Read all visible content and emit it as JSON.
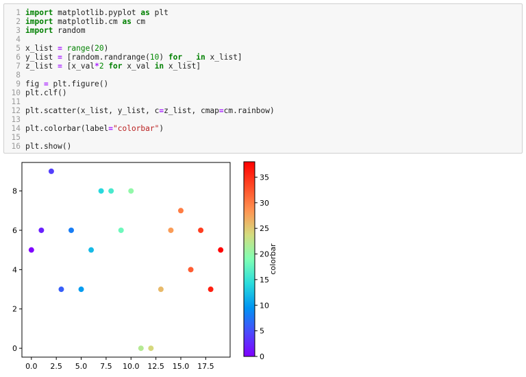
{
  "code_cell": {
    "lines": [
      {
        "num": "1",
        "tokens": [
          {
            "t": "kw",
            "v": "import"
          },
          {
            "t": "",
            "v": " matplotlib.pyplot "
          },
          {
            "t": "kw",
            "v": "as"
          },
          {
            "t": "",
            "v": " plt"
          }
        ]
      },
      {
        "num": "2",
        "tokens": [
          {
            "t": "kw",
            "v": "import"
          },
          {
            "t": "",
            "v": " matplotlib.cm "
          },
          {
            "t": "kw",
            "v": "as"
          },
          {
            "t": "",
            "v": " cm"
          }
        ]
      },
      {
        "num": "3",
        "tokens": [
          {
            "t": "kw",
            "v": "import"
          },
          {
            "t": "",
            "v": " random"
          }
        ]
      },
      {
        "num": "4",
        "tokens": []
      },
      {
        "num": "5",
        "tokens": [
          {
            "t": "",
            "v": "x_list "
          },
          {
            "t": "op",
            "v": "="
          },
          {
            "t": "",
            "v": " "
          },
          {
            "t": "bi",
            "v": "range"
          },
          {
            "t": "",
            "v": "("
          },
          {
            "t": "nm",
            "v": "20"
          },
          {
            "t": "",
            "v": ")"
          }
        ]
      },
      {
        "num": "6",
        "tokens": [
          {
            "t": "",
            "v": "y_list "
          },
          {
            "t": "op",
            "v": "="
          },
          {
            "t": "",
            "v": " [random.randrange("
          },
          {
            "t": "nm",
            "v": "10"
          },
          {
            "t": "",
            "v": ") "
          },
          {
            "t": "kw",
            "v": "for"
          },
          {
            "t": "",
            "v": " _ "
          },
          {
            "t": "kw",
            "v": "in"
          },
          {
            "t": "",
            "v": " x_list]"
          }
        ]
      },
      {
        "num": "7",
        "tokens": [
          {
            "t": "",
            "v": "z_list "
          },
          {
            "t": "op",
            "v": "="
          },
          {
            "t": "",
            "v": " [x_val"
          },
          {
            "t": "op",
            "v": "*"
          },
          {
            "t": "nm",
            "v": "2"
          },
          {
            "t": "",
            "v": " "
          },
          {
            "t": "kw",
            "v": "for"
          },
          {
            "t": "",
            "v": " x_val "
          },
          {
            "t": "kw",
            "v": "in"
          },
          {
            "t": "",
            "v": " x_list]"
          }
        ]
      },
      {
        "num": "8",
        "tokens": []
      },
      {
        "num": "9",
        "tokens": [
          {
            "t": "",
            "v": "fig "
          },
          {
            "t": "op",
            "v": "="
          },
          {
            "t": "",
            "v": " plt.figure()"
          }
        ]
      },
      {
        "num": "10",
        "tokens": [
          {
            "t": "",
            "v": "plt.clf()"
          }
        ]
      },
      {
        "num": "11",
        "tokens": []
      },
      {
        "num": "12",
        "tokens": [
          {
            "t": "",
            "v": "plt.scatter(x_list, y_list, c"
          },
          {
            "t": "op",
            "v": "="
          },
          {
            "t": "",
            "v": "z_list, cmap"
          },
          {
            "t": "op",
            "v": "="
          },
          {
            "t": "",
            "v": "cm.rainbow)"
          }
        ]
      },
      {
        "num": "13",
        "tokens": []
      },
      {
        "num": "14",
        "tokens": [
          {
            "t": "",
            "v": "plt.colorbar(label"
          },
          {
            "t": "op",
            "v": "="
          },
          {
            "t": "str",
            "v": "\"colorbar\""
          },
          {
            "t": "",
            "v": ")"
          }
        ]
      },
      {
        "num": "15",
        "tokens": []
      },
      {
        "num": "16",
        "tokens": [
          {
            "t": "",
            "v": "plt.show()"
          }
        ]
      }
    ]
  },
  "chart_data": {
    "type": "scatter",
    "x": [
      0,
      1,
      2,
      3,
      4,
      5,
      6,
      7,
      8,
      9,
      10,
      11,
      12,
      13,
      14,
      15,
      16,
      17,
      18,
      19
    ],
    "y": [
      5,
      6,
      9,
      3,
      6,
      3,
      5,
      8,
      8,
      6,
      8,
      0,
      0,
      3,
      6,
      7,
      4,
      6,
      3,
      5
    ],
    "c": [
      0,
      2,
      4,
      6,
      8,
      10,
      12,
      14,
      16,
      18,
      20,
      22,
      24,
      26,
      28,
      30,
      32,
      34,
      36,
      38
    ],
    "colormap": "rainbow",
    "xlim": [
      -0.95,
      19.95
    ],
    "ylim": [
      -0.45,
      9.45
    ],
    "xticks": [
      0,
      2.5,
      5,
      7.5,
      10,
      12.5,
      15,
      17.5
    ],
    "xtick_labels": [
      "0.0",
      "2.5",
      "5.0",
      "7.5",
      "10.0",
      "12.5",
      "15.0",
      "17.5"
    ],
    "yticks": [
      0,
      2,
      4,
      6,
      8
    ],
    "ytick_labels": [
      "0",
      "2",
      "4",
      "6",
      "8"
    ],
    "colorbar": {
      "label": "colorbar",
      "range": [
        0,
        38
      ],
      "ticks": [
        0,
        5,
        10,
        15,
        20,
        25,
        30,
        35
      ],
      "tick_labels": [
        "0",
        "5",
        "10",
        "15",
        "20",
        "25",
        "30",
        "35"
      ]
    },
    "grid": false
  }
}
